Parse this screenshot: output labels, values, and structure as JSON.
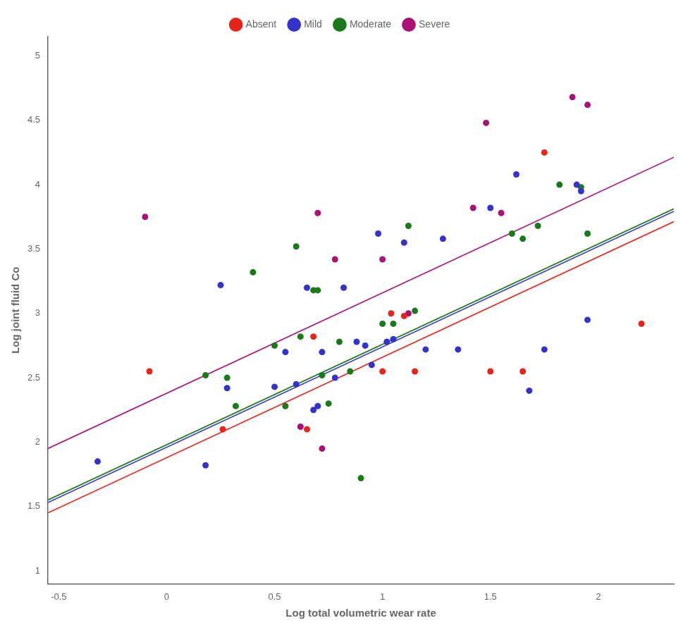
{
  "chart_data": {
    "type": "scatter",
    "xlabel": "Log total volumetric wear rate",
    "ylabel": "Log joint fluid Co",
    "xlim": [
      -0.55,
      2.35
    ],
    "ylim": [
      0.9,
      5.15
    ],
    "xticks": [
      -0.5,
      0.0,
      0.5,
      1.0,
      1.5,
      2.0
    ],
    "yticks": [
      1.0,
      1.5,
      2.0,
      2.5,
      3.0,
      3.5,
      4.0,
      4.5,
      5.0
    ],
    "grid": false,
    "legend": "top",
    "series": [
      {
        "name": "Absent",
        "color": "#E8231A",
        "marker": "circle",
        "x": [
          -0.08,
          0.26,
          0.65,
          0.68,
          1.0,
          1.04,
          1.1,
          1.15,
          1.5,
          1.65,
          1.75,
          2.2
        ],
        "values": [
          2.55,
          2.1,
          2.1,
          2.82,
          2.55,
          3.0,
          2.98,
          2.55,
          2.55,
          2.55,
          4.25,
          2.92
        ],
        "fit": {
          "x": [
            -0.55,
            2.35
          ],
          "values": [
            1.451,
            3.713
          ]
        }
      },
      {
        "name": "Mild",
        "color": "#3333CC",
        "marker": "circle",
        "x": [
          -0.32,
          0.18,
          0.25,
          0.28,
          0.5,
          0.55,
          0.6,
          0.65,
          0.68,
          0.7,
          0.72,
          0.78,
          0.82,
          0.88,
          0.92,
          0.95,
          0.98,
          1.02,
          1.05,
          1.1,
          1.2,
          1.28,
          1.35,
          1.5,
          1.62,
          1.68,
          1.75,
          1.9,
          1.92,
          1.95
        ],
        "values": [
          1.85,
          1.82,
          3.22,
          2.42,
          2.43,
          2.7,
          2.45,
          3.2,
          2.25,
          2.28,
          2.7,
          2.5,
          3.2,
          2.78,
          2.75,
          2.6,
          3.62,
          2.78,
          2.8,
          3.55,
          2.72,
          3.58,
          2.72,
          3.82,
          4.08,
          2.4,
          2.72,
          4.0,
          3.95,
          2.95
        ],
        "fit": {
          "x": [
            -0.55,
            2.35
          ],
          "values": [
            1.531,
            3.793
          ]
        }
      },
      {
        "name": "Moderate",
        "color": "#1A7A1A",
        "marker": "circle",
        "x": [
          0.18,
          0.28,
          0.32,
          0.4,
          0.5,
          0.55,
          0.6,
          0.62,
          0.68,
          0.7,
          0.72,
          0.75,
          0.8,
          0.85,
          0.9,
          1.0,
          1.05,
          1.12,
          1.15,
          1.6,
          1.65,
          1.72,
          1.82,
          1.92,
          1.95
        ],
        "values": [
          2.52,
          2.5,
          2.28,
          3.32,
          2.75,
          2.28,
          3.52,
          2.82,
          3.18,
          3.18,
          2.52,
          2.3,
          2.78,
          2.55,
          1.72,
          2.92,
          2.92,
          3.68,
          3.02,
          3.62,
          3.58,
          3.68,
          4.0,
          3.98,
          3.62
        ],
        "fit": {
          "x": [
            -0.55,
            2.35
          ],
          "values": [
            1.551,
            3.813
          ]
        }
      },
      {
        "name": "Severe",
        "color": "#AA1177",
        "marker": "circle",
        "x": [
          -0.1,
          0.62,
          0.7,
          0.72,
          0.78,
          1.0,
          1.12,
          1.42,
          1.48,
          1.55,
          1.88,
          1.95
        ],
        "values": [
          3.75,
          2.12,
          3.78,
          1.95,
          3.42,
          3.42,
          3.0,
          3.82,
          4.48,
          3.78,
          4.68,
          4.62
        ],
        "fit": {
          "x": [
            -0.55,
            2.35
          ],
          "values": [
            1.951,
            4.213
          ]
        }
      }
    ]
  }
}
